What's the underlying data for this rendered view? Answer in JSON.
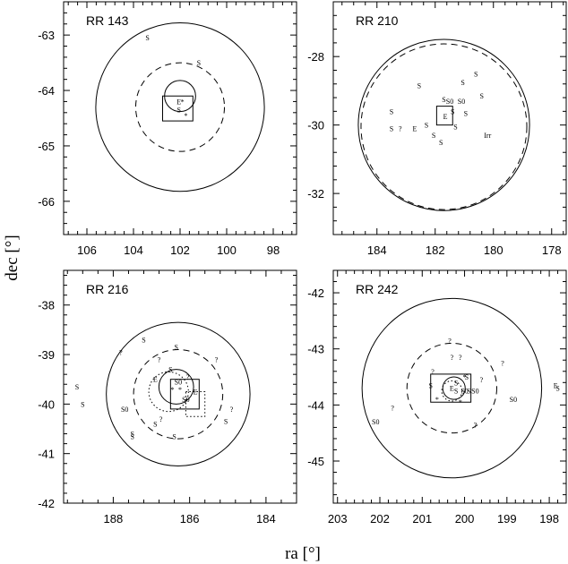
{
  "figure": {
    "ylabel": "dec [°]",
    "xlabel": "ra [°]"
  },
  "chart_data": [
    {
      "type": "scatter",
      "title": "RR 143",
      "xlim": [
        107,
        97
      ],
      "ylim": [
        -66.6,
        -62.4
      ],
      "xticks": [
        106,
        104,
        102,
        100,
        98
      ],
      "yticks": [
        -63,
        -64,
        -65,
        -66
      ],
      "x_tick_labels": [
        "106",
        "104",
        "102",
        "100",
        "98"
      ],
      "y_tick_labels": [
        "-63",
        "-64",
        "-65",
        "-66"
      ],
      "circles": [
        {
          "style": "solid",
          "center": [
            102,
            -64.3
          ],
          "radius_dec": 1.52
        },
        {
          "style": "dashed",
          "center": [
            102,
            -64.3
          ],
          "radius_dec": 0.8
        },
        {
          "style": "solid",
          "center": [
            102,
            -64.1
          ],
          "radius_dec": 0.28
        }
      ],
      "boxes": [
        {
          "style": "solid",
          "x": [
            102.75,
            101.45
          ],
          "y": [
            -64.1,
            -64.55
          ]
        }
      ],
      "galaxies": [
        {
          "x": 103.4,
          "y": -63.05,
          "label": "S"
        },
        {
          "x": 101.2,
          "y": -63.5,
          "label": "S"
        },
        {
          "x": 102.05,
          "y": -64.2,
          "label": "E"
        },
        {
          "x": 102.05,
          "y": -64.35,
          "label": "S"
        },
        {
          "x": 101.9,
          "y": -64.2,
          "label": "*"
        },
        {
          "x": 101.75,
          "y": -64.45,
          "label": "*"
        }
      ]
    },
    {
      "type": "scatter",
      "title": "RR 210",
      "xlim": [
        185.5,
        177.5
      ],
      "ylim": [
        -33.2,
        -26.4
      ],
      "xticks": [
        184,
        182,
        180,
        178
      ],
      "yticks": [
        -28,
        -30,
        -32
      ],
      "x_tick_labels": [
        "184",
        "182",
        "180",
        "178"
      ],
      "y_tick_labels": [
        "-28",
        "-30",
        "-32"
      ],
      "circles": [
        {
          "style": "solid",
          "center": [
            181.7,
            -30.0
          ],
          "radius_dec": 2.5
        },
        {
          "style": "dashed",
          "center": [
            181.7,
            -30.05
          ],
          "radius_dec": 2.42
        }
      ],
      "boxes": [
        {
          "style": "solid",
          "x": [
            181.95,
            181.4
          ],
          "y": [
            -29.45,
            -30.0
          ]
        }
      ],
      "galaxies": [
        {
          "x": 182.55,
          "y": -28.85,
          "label": "S"
        },
        {
          "x": 181.05,
          "y": -28.75,
          "label": "S"
        },
        {
          "x": 180.6,
          "y": -28.5,
          "label": "S"
        },
        {
          "x": 181.7,
          "y": -29.25,
          "label": "S"
        },
        {
          "x": 181.5,
          "y": -29.3,
          "label": "S0"
        },
        {
          "x": 181.1,
          "y": -29.3,
          "label": "S0"
        },
        {
          "x": 180.4,
          "y": -29.15,
          "label": "S"
        },
        {
          "x": 183.5,
          "y": -29.6,
          "label": "S"
        },
        {
          "x": 181.65,
          "y": -29.75,
          "label": "E"
        },
        {
          "x": 181.4,
          "y": -29.6,
          "label": "S"
        },
        {
          "x": 180.95,
          "y": -29.65,
          "label": "S"
        },
        {
          "x": 183.5,
          "y": -30.1,
          "label": "S"
        },
        {
          "x": 182.7,
          "y": -30.1,
          "label": "E"
        },
        {
          "x": 182.3,
          "y": -30.0,
          "label": "S"
        },
        {
          "x": 181.3,
          "y": -30.05,
          "label": "S"
        },
        {
          "x": 180.2,
          "y": -30.3,
          "label": "Irr"
        },
        {
          "x": 182.05,
          "y": -30.3,
          "label": "S"
        },
        {
          "x": 181.8,
          "y": -30.5,
          "label": "S"
        },
        {
          "x": 183.2,
          "y": -30.1,
          "label": "?"
        }
      ]
    },
    {
      "type": "scatter",
      "title": "RR 216",
      "xlim": [
        189.3,
        183.2
      ],
      "ylim": [
        -42.0,
        -37.3
      ],
      "xticks": [
        188,
        186,
        184
      ],
      "yticks": [
        -38,
        -39,
        -40,
        -41,
        -42
      ],
      "x_tick_labels": [
        "188",
        "186",
        "184"
      ],
      "y_tick_labels": [
        "-38",
        "-39",
        "-40",
        "-41",
        "-42"
      ],
      "circles": [
        {
          "style": "solid",
          "center": [
            186.3,
            -39.8
          ],
          "radius_dec": 1.45
        },
        {
          "style": "dashed",
          "center": [
            186.3,
            -39.8
          ],
          "radius_dec": 0.9
        },
        {
          "style": "solid",
          "center": [
            186.35,
            -39.65
          ],
          "radius_dec": 0.35
        },
        {
          "style": "dotted",
          "center": [
            186.55,
            -39.75
          ],
          "radius_dec": 0.4
        }
      ],
      "boxes": [
        {
          "style": "solid",
          "x": [
            186.5,
            185.75
          ],
          "y": [
            -39.5,
            -40.1
          ]
        },
        {
          "style": "dotted",
          "x": [
            186.1,
            185.6
          ],
          "y": [
            -39.75,
            -40.25
          ]
        }
      ],
      "galaxies": [
        {
          "x": 187.2,
          "y": -38.7,
          "label": "S"
        },
        {
          "x": 186.35,
          "y": -38.85,
          "label": "S"
        },
        {
          "x": 187.8,
          "y": -38.95,
          "label": "?"
        },
        {
          "x": 186.8,
          "y": -39.1,
          "label": "?"
        },
        {
          "x": 185.3,
          "y": -39.1,
          "label": "?"
        },
        {
          "x": 186.5,
          "y": -39.3,
          "label": "S"
        },
        {
          "x": 186.05,
          "y": -39.45,
          "label": "?"
        },
        {
          "x": 186.9,
          "y": -39.5,
          "label": "E"
        },
        {
          "x": 186.3,
          "y": -39.55,
          "label": "S0"
        },
        {
          "x": 188.95,
          "y": -39.65,
          "label": "S"
        },
        {
          "x": 186.45,
          "y": -39.7,
          "label": "*"
        },
        {
          "x": 186.25,
          "y": -39.7,
          "label": "*"
        },
        {
          "x": 185.85,
          "y": -39.75,
          "label": "E"
        },
        {
          "x": 186.1,
          "y": -39.9,
          "label": "S0"
        },
        {
          "x": 188.8,
          "y": -40.0,
          "label": "S"
        },
        {
          "x": 187.7,
          "y": -40.1,
          "label": "S0"
        },
        {
          "x": 184.9,
          "y": -40.1,
          "label": "?"
        },
        {
          "x": 185.05,
          "y": -40.35,
          "label": "S"
        },
        {
          "x": 186.9,
          "y": -40.4,
          "label": "S"
        },
        {
          "x": 187.5,
          "y": -40.6,
          "label": "S"
        },
        {
          "x": 187.5,
          "y": -40.65,
          "label": "S"
        },
        {
          "x": 186.4,
          "y": -40.65,
          "label": "S"
        },
        {
          "x": 186.75,
          "y": -40.3,
          "label": "?"
        }
      ]
    },
    {
      "type": "scatter",
      "title": "RR 242",
      "xlim": [
        203.1,
        197.6
      ],
      "ylim": [
        -45.75,
        -41.6
      ],
      "xticks": [
        203,
        202,
        201,
        200,
        199,
        198
      ],
      "yticks": [
        -42,
        -43,
        -44,
        -45
      ],
      "x_tick_labels": [
        "203",
        "202",
        "201",
        "200",
        "199",
        "198"
      ],
      "y_tick_labels": [
        "-42",
        "-43",
        "-44",
        "-45"
      ],
      "circles": [
        {
          "style": "solid",
          "center": [
            200.3,
            -43.7
          ],
          "radius_dec": 1.6
        },
        {
          "style": "dashed",
          "center": [
            200.3,
            -43.7
          ],
          "radius_dec": 0.8
        },
        {
          "style": "solid",
          "center": [
            200.25,
            -43.7
          ],
          "radius_dec": 0.2
        },
        {
          "style": "dotted",
          "center": [
            200.3,
            -43.75
          ],
          "radius_dec": 0.18
        }
      ],
      "boxes": [
        {
          "style": "solid",
          "x": [
            200.8,
            199.85
          ],
          "y": [
            -43.45,
            -43.95
          ]
        }
      ],
      "galaxies": [
        {
          "x": 200.35,
          "y": -42.85,
          "label": "?"
        },
        {
          "x": 200.1,
          "y": -43.15,
          "label": "?"
        },
        {
          "x": 200.3,
          "y": -43.15,
          "label": "?"
        },
        {
          "x": 200.75,
          "y": -43.4,
          "label": "?"
        },
        {
          "x": 199.1,
          "y": -43.25,
          "label": "?"
        },
        {
          "x": 200.2,
          "y": -43.6,
          "label": "S"
        },
        {
          "x": 199.6,
          "y": -43.55,
          "label": "?"
        },
        {
          "x": 199.95,
          "y": -43.5,
          "label": "S"
        },
        {
          "x": 200.8,
          "y": -43.65,
          "label": "S"
        },
        {
          "x": 200.3,
          "y": -43.7,
          "label": "E"
        },
        {
          "x": 200.2,
          "y": -43.75,
          "label": "S"
        },
        {
          "x": 200.0,
          "y": -43.75,
          "label": "S0"
        },
        {
          "x": 199.9,
          "y": -43.75,
          "label": "S"
        },
        {
          "x": 199.75,
          "y": -43.75,
          "label": "S0"
        },
        {
          "x": 198.85,
          "y": -43.9,
          "label": "S0"
        },
        {
          "x": 197.85,
          "y": -43.65,
          "label": "E"
        },
        {
          "x": 197.8,
          "y": -43.7,
          "label": "S"
        },
        {
          "x": 201.7,
          "y": -44.05,
          "label": "?"
        },
        {
          "x": 202.1,
          "y": -44.3,
          "label": "S0"
        },
        {
          "x": 199.75,
          "y": -44.35,
          "label": "?"
        },
        {
          "x": 200.65,
          "y": -43.9,
          "label": "*"
        },
        {
          "x": 200.1,
          "y": -43.95,
          "label": "*"
        },
        {
          "x": 200.0,
          "y": -43.5,
          "label": "*"
        }
      ]
    }
  ]
}
